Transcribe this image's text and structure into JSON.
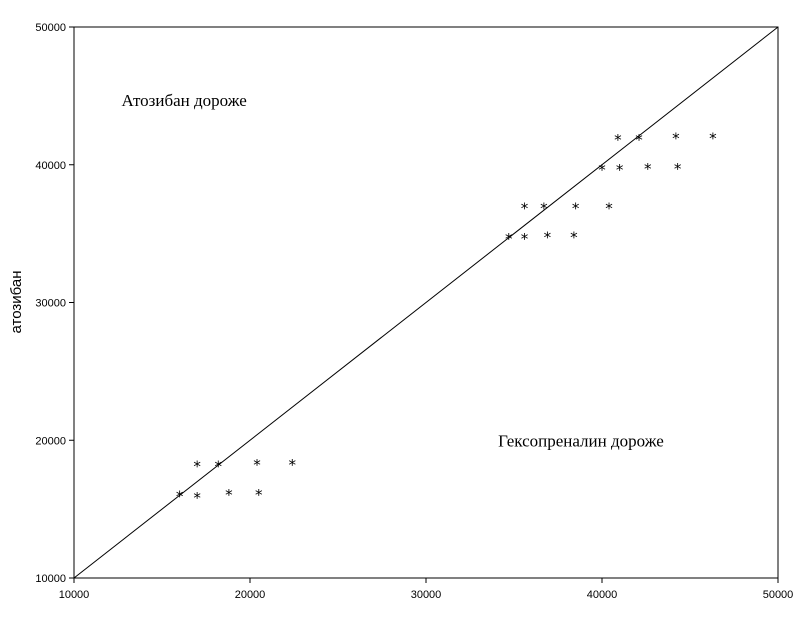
{
  "chart_data": {
    "type": "scatter",
    "title": "",
    "xlabel": "",
    "ylabel": "атозибан",
    "xlim": [
      10000,
      50000
    ],
    "ylim": [
      10000,
      50000
    ],
    "x_ticks": [
      "10000",
      "20000",
      "30000",
      "40000",
      "50000"
    ],
    "y_ticks": [
      "10000",
      "20000",
      "30000",
      "40000",
      "50000"
    ],
    "grid": false,
    "marker_symbol": "*",
    "reference_line": {
      "from": [
        10000,
        10000
      ],
      "to": [
        50000,
        50000
      ]
    },
    "annotations": [
      {
        "text": "Атозибан дороже",
        "x": 12700,
        "y": 44700
      },
      {
        "text": "Гексопреналин дороже",
        "x": 34100,
        "y": 20000
      }
    ],
    "series": [
      {
        "points": [
          [
            16000,
            16200
          ],
          [
            17000,
            18400
          ],
          [
            17000,
            16100
          ],
          [
            18200,
            18400
          ],
          [
            18800,
            16300
          ],
          [
            20400,
            18500
          ],
          [
            20500,
            16300
          ],
          [
            22400,
            18500
          ],
          [
            34700,
            34900
          ],
          [
            35600,
            37100
          ],
          [
            35600,
            34900
          ],
          [
            36700,
            37100
          ],
          [
            36900,
            35000
          ],
          [
            38400,
            35000
          ],
          [
            38500,
            37100
          ],
          [
            40000,
            39900
          ],
          [
            40400,
            37100
          ],
          [
            40900,
            42100
          ],
          [
            41000,
            39900
          ],
          [
            42100,
            42100
          ],
          [
            42600,
            40000
          ],
          [
            44200,
            42200
          ],
          [
            44300,
            40000
          ],
          [
            46300,
            42200
          ]
        ]
      }
    ]
  }
}
